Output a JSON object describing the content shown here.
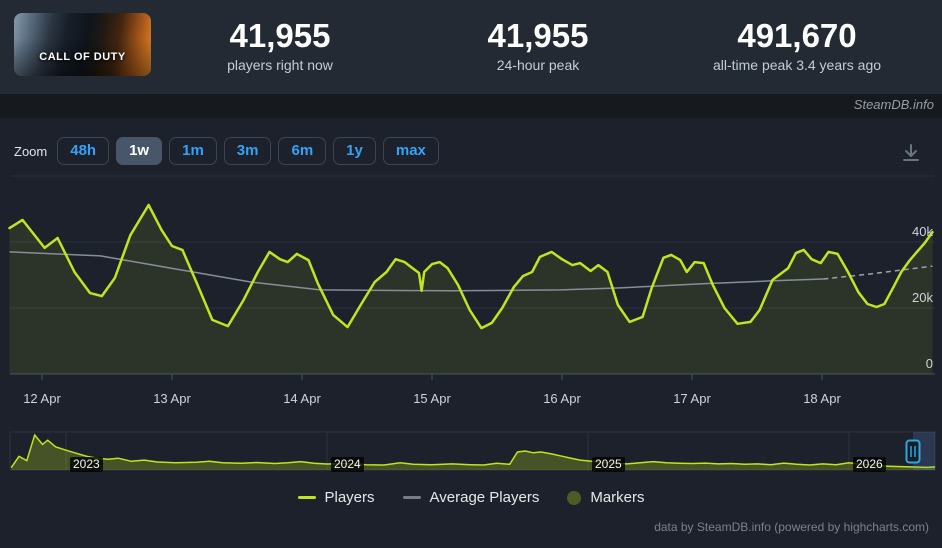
{
  "header": {
    "game_capsule_text": "CALL OF DUTY",
    "stats": [
      {
        "value": "41,955",
        "label": "players right now"
      },
      {
        "value": "41,955",
        "label": "24-hour peak"
      },
      {
        "value": "491,670",
        "label": "all-time peak 3.4 years ago"
      }
    ],
    "watermark": "SteamDB.info"
  },
  "toolbar": {
    "zoom_label": "Zoom",
    "ranges": [
      {
        "label": "48h",
        "active": false
      },
      {
        "label": "1w",
        "active": true
      },
      {
        "label": "1m",
        "active": false
      },
      {
        "label": "3m",
        "active": false
      },
      {
        "label": "6m",
        "active": false
      },
      {
        "label": "1y",
        "active": false
      },
      {
        "label": "max",
        "active": false
      }
    ],
    "icons": {
      "download": "arrow-down-to-line"
    }
  },
  "chart_data": {
    "type": "line",
    "title": "",
    "yaxis": {
      "labels": [
        "40k",
        "20k",
        "0"
      ],
      "range_players": [
        0,
        60000
      ],
      "position": "right",
      "grid": true
    },
    "xaxis": {
      "labels": [
        "12 Apr",
        "13 Apr",
        "14 Apr",
        "15 Apr",
        "16 Apr",
        "17 Apr",
        "18 Apr"
      ],
      "unit": "day"
    },
    "series": [
      {
        "name": "Players",
        "color": "#bfe51e",
        "x_unit": "days since 12 Apr 00:00",
        "y_unit": "thousands of players",
        "points": [
          [
            -0.25,
            44.2
          ],
          [
            -0.15,
            46.7
          ],
          [
            0.02,
            38.2
          ],
          [
            0.12,
            41.2
          ],
          [
            0.25,
            30.9
          ],
          [
            0.37,
            24.5
          ],
          [
            0.46,
            23.6
          ],
          [
            0.56,
            29.1
          ],
          [
            0.68,
            42.1
          ],
          [
            0.82,
            51.2
          ],
          [
            0.92,
            43.6
          ],
          [
            1.0,
            38.8
          ],
          [
            1.08,
            37.6
          ],
          [
            1.19,
            27.6
          ],
          [
            1.31,
            16.4
          ],
          [
            1.43,
            14.5
          ],
          [
            1.55,
            22.4
          ],
          [
            1.66,
            30.9
          ],
          [
            1.75,
            37.0
          ],
          [
            1.83,
            34.8
          ],
          [
            1.89,
            33.9
          ],
          [
            1.96,
            36.4
          ],
          [
            2.05,
            34.5
          ],
          [
            2.12,
            27.6
          ],
          [
            2.24,
            17.9
          ],
          [
            2.35,
            14.2
          ],
          [
            2.46,
            21.5
          ],
          [
            2.56,
            27.9
          ],
          [
            2.65,
            30.9
          ],
          [
            2.72,
            34.8
          ],
          [
            2.79,
            33.9
          ],
          [
            2.85,
            32.1
          ],
          [
            2.9,
            30.6
          ],
          [
            2.92,
            25.2
          ],
          [
            2.94,
            30.9
          ],
          [
            3.0,
            33.3
          ],
          [
            3.06,
            33.9
          ],
          [
            3.12,
            32.1
          ],
          [
            3.2,
            27.0
          ],
          [
            3.29,
            19.4
          ],
          [
            3.38,
            13.9
          ],
          [
            3.46,
            15.5
          ],
          [
            3.54,
            20.0
          ],
          [
            3.63,
            26.4
          ],
          [
            3.7,
            29.7
          ],
          [
            3.77,
            30.9
          ],
          [
            3.83,
            35.5
          ],
          [
            3.92,
            37.0
          ],
          [
            4.0,
            34.8
          ],
          [
            4.08,
            33.0
          ],
          [
            4.14,
            33.6
          ],
          [
            4.22,
            31.2
          ],
          [
            4.28,
            33.0
          ],
          [
            4.35,
            30.9
          ],
          [
            4.43,
            20.9
          ],
          [
            4.52,
            15.8
          ],
          [
            4.62,
            17.3
          ],
          [
            4.69,
            26.1
          ],
          [
            4.78,
            35.2
          ],
          [
            4.84,
            36.1
          ],
          [
            4.91,
            34.5
          ],
          [
            4.96,
            30.9
          ],
          [
            5.02,
            33.9
          ],
          [
            5.09,
            33.6
          ],
          [
            5.16,
            27.0
          ],
          [
            5.25,
            20.0
          ],
          [
            5.35,
            15.2
          ],
          [
            5.45,
            15.8
          ],
          [
            5.52,
            19.4
          ],
          [
            5.62,
            28.5
          ],
          [
            5.68,
            30.3
          ],
          [
            5.74,
            32.1
          ],
          [
            5.8,
            36.7
          ],
          [
            5.86,
            37.6
          ],
          [
            5.92,
            34.8
          ],
          [
            5.99,
            33.6
          ],
          [
            6.05,
            37.0
          ],
          [
            6.12,
            36.4
          ],
          [
            6.2,
            30.9
          ],
          [
            6.28,
            24.8
          ],
          [
            6.35,
            21.2
          ],
          [
            6.42,
            20.3
          ],
          [
            6.48,
            21.2
          ],
          [
            6.55,
            26.4
          ],
          [
            6.61,
            30.9
          ],
          [
            6.67,
            34.2
          ],
          [
            6.73,
            37.0
          ],
          [
            6.79,
            39.7
          ],
          [
            6.85,
            43.0
          ]
        ]
      },
      {
        "name": "Average Players",
        "color": "#868f98",
        "x_unit": "days since 12 Apr 00:00",
        "y_unit": "thousands of players",
        "points": [
          [
            -0.25,
            37.0
          ],
          [
            0.45,
            35.8
          ],
          [
            0.99,
            32.1
          ],
          [
            1.6,
            27.9
          ],
          [
            2.14,
            25.5
          ],
          [
            3.14,
            25.2
          ],
          [
            3.99,
            25.5
          ],
          [
            4.45,
            26.1
          ],
          [
            5.06,
            27.3
          ],
          [
            5.6,
            28.2
          ],
          [
            6.01,
            28.8
          ]
        ],
        "projection_points": [
          [
            6.01,
            28.8
          ],
          [
            6.37,
            30.3
          ],
          [
            6.85,
            32.7
          ]
        ]
      },
      {
        "name": "Markers",
        "color": "#4d5c26",
        "points": []
      }
    ],
    "navigator": {
      "year_labels": [
        "2023",
        "2024",
        "2025",
        "2026"
      ],
      "x_unit": "year",
      "y_unit": "thousands of players",
      "selected_range": "last week",
      "points": [
        [
          2022.79,
          30
        ],
        [
          2022.82,
          175
        ],
        [
          2022.85,
          120
        ],
        [
          2022.88,
          451
        ],
        [
          2022.91,
          330
        ],
        [
          2022.93,
          385
        ],
        [
          2022.96,
          300
        ],
        [
          2023.0,
          255
        ],
        [
          2023.04,
          215
        ],
        [
          2023.08,
          175
        ],
        [
          2023.12,
          152
        ],
        [
          2023.16,
          138
        ],
        [
          2023.2,
          152
        ],
        [
          2023.25,
          112
        ],
        [
          2023.3,
          128
        ],
        [
          2023.35,
          103
        ],
        [
          2023.42,
          93
        ],
        [
          2023.5,
          99
        ],
        [
          2023.55,
          112
        ],
        [
          2023.6,
          93
        ],
        [
          2023.67,
          88
        ],
        [
          2023.73,
          97
        ],
        [
          2023.8,
          84
        ],
        [
          2023.85,
          93
        ],
        [
          2023.9,
          108
        ],
        [
          2023.95,
          88
        ],
        [
          2024.0,
          77
        ],
        [
          2024.08,
          84
        ],
        [
          2024.15,
          69
        ],
        [
          2024.22,
          64
        ],
        [
          2024.28,
          93
        ],
        [
          2024.33,
          74
        ],
        [
          2024.4,
          69
        ],
        [
          2024.48,
          79
        ],
        [
          2024.55,
          69
        ],
        [
          2024.6,
          64
        ],
        [
          2024.65,
          88
        ],
        [
          2024.7,
          74
        ],
        [
          2024.73,
          232
        ],
        [
          2024.76,
          245
        ],
        [
          2024.79,
          222
        ],
        [
          2024.82,
          232
        ],
        [
          2024.86,
          208
        ],
        [
          2024.9,
          178
        ],
        [
          2024.94,
          148
        ],
        [
          2024.97,
          128
        ],
        [
          2025.0,
          118
        ],
        [
          2025.05,
          99
        ],
        [
          2025.1,
          88
        ],
        [
          2025.15,
          79
        ],
        [
          2025.2,
          93
        ],
        [
          2025.25,
          108
        ],
        [
          2025.3,
          93
        ],
        [
          2025.35,
          88
        ],
        [
          2025.4,
          84
        ],
        [
          2025.45,
          89
        ],
        [
          2025.5,
          79
        ],
        [
          2025.55,
          84
        ],
        [
          2025.6,
          74
        ],
        [
          2025.65,
          79
        ],
        [
          2025.7,
          69
        ],
        [
          2025.75,
          89
        ],
        [
          2025.8,
          74
        ],
        [
          2025.85,
          64
        ],
        [
          2025.9,
          79
        ],
        [
          2025.95,
          69
        ],
        [
          2026.0,
          93
        ],
        [
          2026.05,
          74
        ],
        [
          2026.1,
          59
        ],
        [
          2026.15,
          49
        ],
        [
          2026.2,
          44
        ],
        [
          2026.25,
          39
        ],
        [
          2026.3,
          33
        ],
        [
          2026.33,
          40
        ]
      ]
    },
    "legend_position": "bottom"
  },
  "legend": {
    "items": [
      {
        "label": "Players",
        "color": "#bfe51e",
        "swatch": "line"
      },
      {
        "label": "Average Players",
        "color": "#757d85",
        "swatch": "line"
      },
      {
        "label": "Markers",
        "color": "#4d5c26",
        "swatch": "circle"
      }
    ]
  },
  "credits": "data by SteamDB.info (powered by highcharts.com)"
}
